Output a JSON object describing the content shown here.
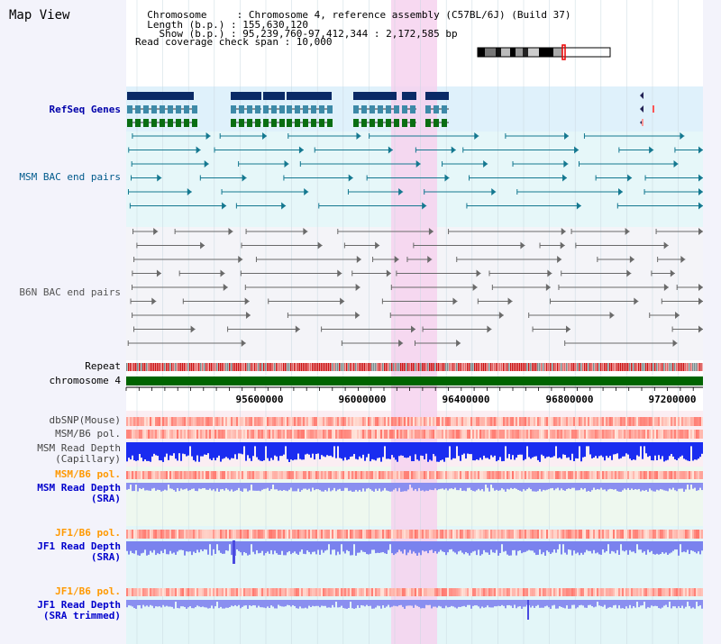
{
  "header": {
    "title": "Map View",
    "info_lines": [
      "  Chromosome     : Chromosome 4, reference assembly (C57BL/6J) (Build 37)",
      "  Length (b.p.) : 155,630,120",
      "    Show (b.p.) : 95,239,760-97,412,344 : 2,172,585 bp",
      "Read coverage check span : 10,000"
    ]
  },
  "tracks": {
    "refseq": "RefSeq Genes",
    "msm_bac": "MSM BAC end pairs",
    "b6n_bac": "B6N BAC end pairs",
    "repeat": "Repeat",
    "chromosome": "chromosome 4",
    "dbsnp": "dbSNP(Mouse)",
    "msm_b6_pol": "MSM/B6 pol.",
    "msm_depth_cap": "MSM Read Depth\n(Capillary)",
    "msm_b6_pol2": "MSM/B6 pol.",
    "msm_depth_sra": "MSM Read Depth\n(SRA)",
    "jf1_b6_pol": "JF1/B6 pol.",
    "jf1_depth_sra": "JF1 Read Depth\n(SRA)",
    "jf1_b6_pol2": "JF1/B6 pol.",
    "jf1_depth_trim": "JF1 Read Depth\n(SRA trimmed)"
  },
  "scale_labels": [
    "95600000",
    "96000000",
    "96400000",
    "96800000",
    "97200000"
  ],
  "colors": {
    "refseq_label": "#0000aa",
    "msm_label": "#005a8c",
    "b6n_label": "#555555",
    "orange_label": "#ff9900",
    "blue_label": "#0000cc",
    "highlight": "#f8d8f0",
    "chromosome_bar": "#006400"
  }
}
